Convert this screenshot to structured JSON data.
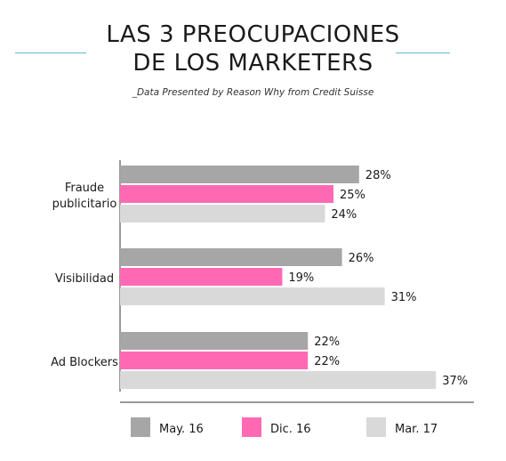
{
  "header": {
    "title_line1": "LAS 3 PREOCUPACIONES",
    "title_line2": "DE LOS MARKETERS",
    "subtitle": "_Data Presented by Reason Why from Credit Suisse"
  },
  "colors": {
    "may16": "#a6a6a6",
    "dic16": "#ff69b4",
    "mar17": "#d9d9d9",
    "accent_rule": "#5bb8d4"
  },
  "chart_data": {
    "type": "bar",
    "orientation": "horizontal",
    "categories": [
      [
        "Fraude",
        "publicitario"
      ],
      [
        "Visibilidad"
      ],
      [
        "Ad Blockers"
      ]
    ],
    "series": [
      {
        "name": "May. 16",
        "values": [
          28,
          26,
          22
        ]
      },
      {
        "name": "Dic. 16",
        "values": [
          25,
          19,
          22
        ]
      },
      {
        "name": "Mar. 17",
        "values": [
          24,
          31,
          37
        ]
      }
    ],
    "value_suffix": "%",
    "xlim": [
      0,
      40
    ],
    "legend_position": "bottom",
    "grid": false
  }
}
